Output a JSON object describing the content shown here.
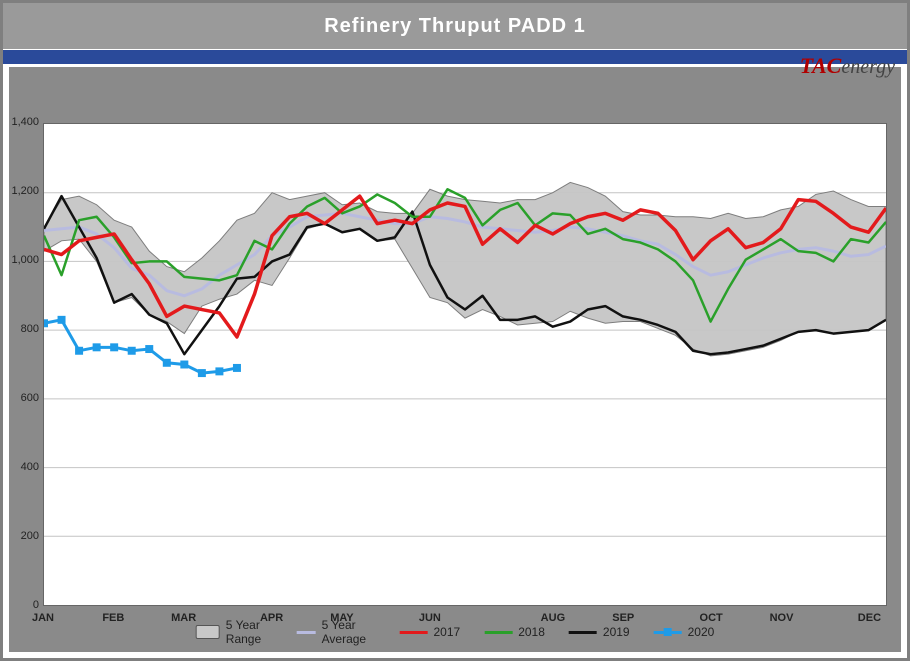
{
  "title": "Refinery Thruput PADD 1",
  "logo": {
    "a": "TAC",
    "b": "energy"
  },
  "months": [
    "JAN",
    "FEB",
    "MAR",
    "APR",
    "MAY",
    "JUN",
    "AUG",
    "SEP",
    "OCT",
    "NOV",
    "DEC"
  ],
  "month_x": [
    0,
    4,
    8,
    13,
    17,
    22,
    29,
    33,
    38,
    42,
    47
  ],
  "ylim": [
    0,
    1400
  ],
  "yticks": [
    0,
    200,
    400,
    600,
    800,
    1000,
    1200,
    1400
  ],
  "grid_color": "#c4c4c4",
  "range_fill": "#c6c6c6",
  "range": {
    "hi": [
      1100,
      1180,
      1190,
      1165,
      1120,
      1100,
      1030,
      985,
      970,
      1010,
      1060,
      1120,
      1140,
      1200,
      1180,
      1190,
      1200,
      1165,
      1170,
      1145,
      1140,
      1140,
      1210,
      1190,
      1180,
      1175,
      1170,
      1180,
      1180,
      1200,
      1230,
      1215,
      1190,
      1145,
      1135,
      1135,
      1130,
      1130,
      1125,
      1140,
      1125,
      1130,
      1150,
      1160,
      1195,
      1205,
      1180,
      1160,
      1160
    ],
    "lo": [
      1030,
      1060,
      1065,
      1000,
      880,
      895,
      845,
      825,
      790,
      870,
      890,
      905,
      945,
      930,
      1010,
      1095,
      1110,
      1085,
      1095,
      1060,
      1065,
      980,
      895,
      880,
      835,
      860,
      840,
      815,
      820,
      825,
      855,
      835,
      820,
      825,
      825,
      805,
      785,
      745,
      725,
      730,
      740,
      750,
      770,
      795,
      800,
      790,
      795,
      800,
      830
    ]
  },
  "series": {
    "avg": {
      "color": "#b8bbe0",
      "width": 3,
      "y": [
        1090,
        1095,
        1100,
        1080,
        1040,
        980,
        960,
        915,
        900,
        920,
        960,
        990,
        1020,
        1075,
        1100,
        1130,
        1135,
        1140,
        1130,
        1120,
        1110,
        1110,
        1130,
        1125,
        1115,
        1100,
        1095,
        1090,
        1085,
        1090,
        1100,
        1095,
        1085,
        1075,
        1060,
        1050,
        1020,
        985,
        960,
        970,
        990,
        1010,
        1025,
        1035,
        1040,
        1030,
        1015,
        1020,
        1045
      ]
    },
    "y2017": {
      "color": "#e31a1c",
      "width": 3.5,
      "y": [
        1035,
        1020,
        1060,
        1070,
        1080,
        1005,
        935,
        840,
        870,
        860,
        850,
        780,
        905,
        1075,
        1130,
        1140,
        1110,
        1150,
        1190,
        1110,
        1120,
        1110,
        1150,
        1170,
        1160,
        1050,
        1095,
        1055,
        1105,
        1080,
        1110,
        1130,
        1140,
        1120,
        1150,
        1140,
        1090,
        1005,
        1060,
        1095,
        1040,
        1055,
        1095,
        1180,
        1175,
        1140,
        1100,
        1085,
        1155
      ]
    },
    "y2018": {
      "color": "#2aa02a",
      "width": 2.5,
      "y": [
        1075,
        960,
        1120,
        1130,
        1070,
        995,
        1000,
        1000,
        955,
        950,
        945,
        960,
        1060,
        1035,
        1110,
        1160,
        1185,
        1140,
        1160,
        1195,
        1170,
        1130,
        1130,
        1210,
        1185,
        1105,
        1150,
        1170,
        1105,
        1140,
        1135,
        1080,
        1095,
        1065,
        1055,
        1035,
        1000,
        945,
        825,
        920,
        1005,
        1035,
        1065,
        1030,
        1025,
        1000,
        1065,
        1055,
        1115
      ]
    },
    "y2019": {
      "color": "#111111",
      "width": 2.5,
      "y": [
        1095,
        1190,
        1100,
        1010,
        880,
        905,
        845,
        820,
        730,
        800,
        870,
        950,
        955,
        1000,
        1020,
        1100,
        1110,
        1085,
        1095,
        1060,
        1070,
        1145,
        990,
        895,
        860,
        900,
        830,
        830,
        840,
        810,
        825,
        860,
        870,
        840,
        830,
        815,
        795,
        740,
        730,
        735,
        745,
        755,
        775,
        795,
        800,
        790,
        795,
        800,
        830
      ]
    },
    "y2020": {
      "color": "#1e9be8",
      "width": 3,
      "y": [
        820,
        830,
        740,
        750,
        750,
        740,
        745,
        705,
        700,
        675,
        680,
        690
      ]
    }
  },
  "legend": [
    {
      "label": "5 Year Range",
      "kind": "range"
    },
    {
      "label": "5 Year Average",
      "kind": "line",
      "color": "#b8bbe0"
    },
    {
      "label": "2017",
      "kind": "line",
      "color": "#e31a1c"
    },
    {
      "label": "2018",
      "kind": "line",
      "color": "#2aa02a"
    },
    {
      "label": "2019",
      "kind": "line",
      "color": "#111111"
    },
    {
      "label": "2020",
      "kind": "marker",
      "color": "#1e9be8"
    }
  ]
}
